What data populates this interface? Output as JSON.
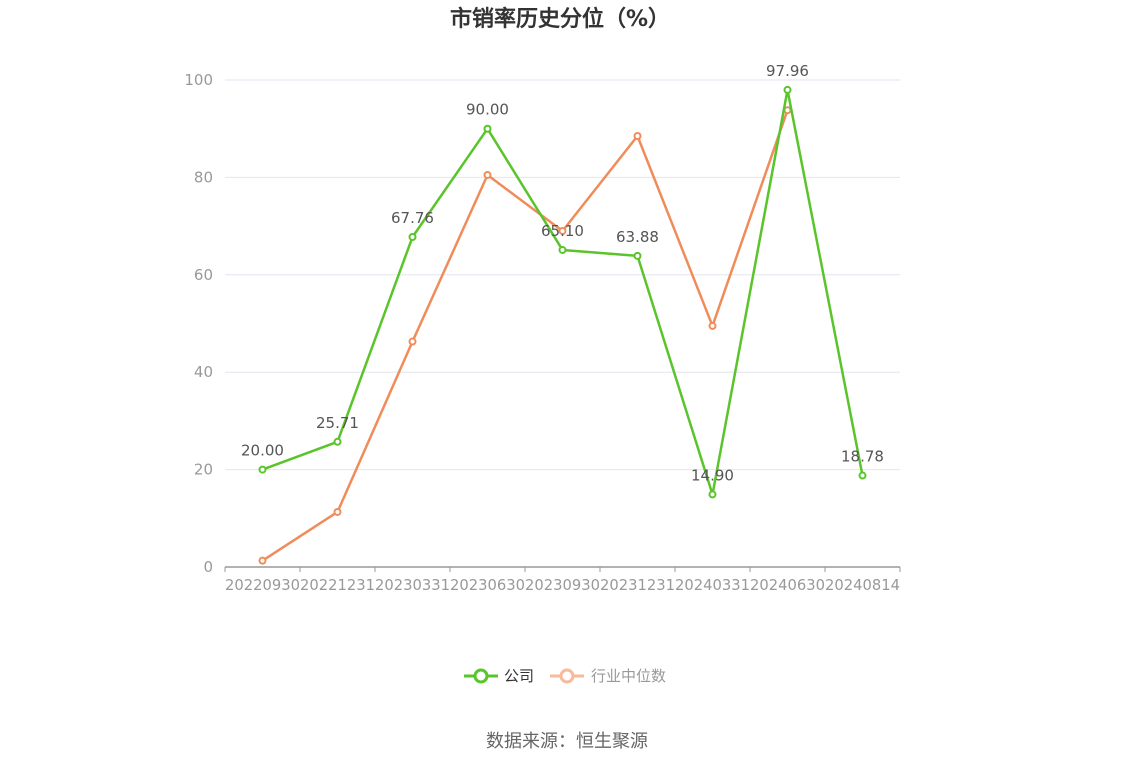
{
  "chart_data": {
    "type": "line",
    "title": "市销率历史分位（%）",
    "categories": [
      "20220930",
      "20221231",
      "20230331",
      "20230630",
      "20230930",
      "20231231",
      "20240331",
      "20240630",
      "20240814"
    ],
    "ylim": [
      0,
      100
    ],
    "yticks": [
      0,
      20,
      40,
      60,
      80,
      100
    ],
    "grid": true,
    "legend_position": "bottom-center",
    "series": [
      {
        "name": "公司",
        "color": "#5ac42b",
        "values": [
          20.0,
          25.71,
          67.76,
          90.0,
          65.1,
          63.88,
          14.9,
          97.96,
          18.78
        ],
        "labels": [
          "20.00",
          "25.71",
          "67.76",
          "90.00",
          "65.10",
          "63.88",
          "14.90",
          "97.96",
          "18.78"
        ]
      },
      {
        "name": "行业中位数",
        "color": "#f08c5a",
        "values": [
          1.3,
          11.3,
          46.3,
          80.5,
          69.0,
          88.5,
          49.5,
          93.8,
          null
        ]
      }
    ]
  },
  "legend": {
    "company_color": "#5ac42b",
    "industry_color": "#f9b99a",
    "industry_text_color": "#999999",
    "company_text_color": "#333333"
  },
  "footer": {
    "source": "数据来源：恒生聚源"
  }
}
